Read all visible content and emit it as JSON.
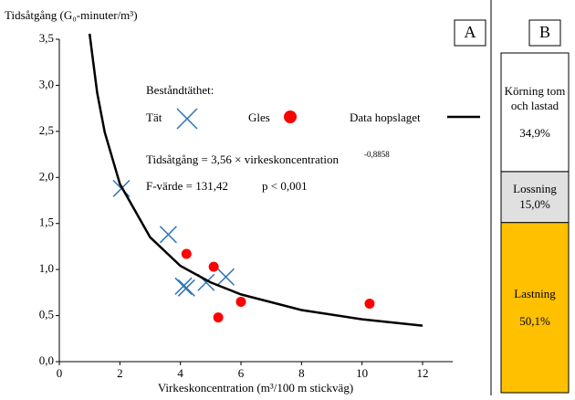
{
  "chart_data": [
    {
      "type": "scatter",
      "title": "A",
      "y_label": "Tidsåtgång (G₀-minuter/m³)",
      "x_label": "Virkeskoncentration (m³/100 m stickväg)",
      "xlim": [
        0,
        13
      ],
      "ylim": [
        0,
        3.5
      ],
      "xticks": [
        0,
        2,
        4,
        6,
        8,
        10,
        12
      ],
      "yticks": [
        {
          "value": 0,
          "label": "0,0"
        },
        {
          "value": 0.5,
          "label": "0,5"
        },
        {
          "value": 1,
          "label": "1,0"
        },
        {
          "value": 1.5,
          "label": "1,5"
        },
        {
          "value": 2,
          "label": "2,0"
        },
        {
          "value": 2.5,
          "label": "2,5"
        },
        {
          "value": 3,
          "label": "3,0"
        },
        {
          "value": 3.5,
          "label": "3,5"
        }
      ],
      "legend_title": "Beståndtäthet:",
      "annotations": [
        "Tidsåtgång = 3,56 × virkeskoncentration",
        "-0,8858",
        "F-värde = 131,42",
        "p < 0,001"
      ],
      "series": [
        {
          "name": "Tät",
          "color": "#2e75b6",
          "marker": "x",
          "x": [
            2.05,
            3.6,
            4.1,
            4.2,
            4.85,
            5.5
          ],
          "values": [
            1.88,
            1.38,
            0.82,
            0.8,
            0.86,
            0.92
          ]
        },
        {
          "name": "Gles",
          "color": "#ff0000",
          "marker": "o",
          "x": [
            4.2,
            5.1,
            5.25,
            6.0,
            10.25
          ],
          "values": [
            1.17,
            1.03,
            0.48,
            0.65,
            0.63
          ]
        },
        {
          "name": "Data hopslaget",
          "color": "#000000",
          "marker": "line",
          "x": [
            1,
            1.25,
            1.5,
            2,
            3,
            4,
            5,
            6,
            8,
            10,
            12
          ],
          "values": [
            3.56,
            2.92,
            2.49,
            1.93,
            1.35,
            1.04,
            0.86,
            0.73,
            0.56,
            0.46,
            0.39
          ]
        }
      ]
    },
    {
      "type": "stacked_bar",
      "title": "B",
      "ylim": [
        0,
        100
      ],
      "series": [
        {
          "name": "Lastning",
          "color": "#ffc000",
          "values": [
            50.1
          ],
          "value_labels": [
            "50,1%"
          ]
        },
        {
          "name": "Lossning",
          "color": "#e0e0e0",
          "values": [
            15.0
          ],
          "value_labels": [
            "15,0%"
          ]
        },
        {
          "name": "Körning tom och lastad",
          "color": "#ffffff",
          "values": [
            34.9
          ],
          "value_labels": [
            "34,9%"
          ]
        }
      ]
    }
  ]
}
